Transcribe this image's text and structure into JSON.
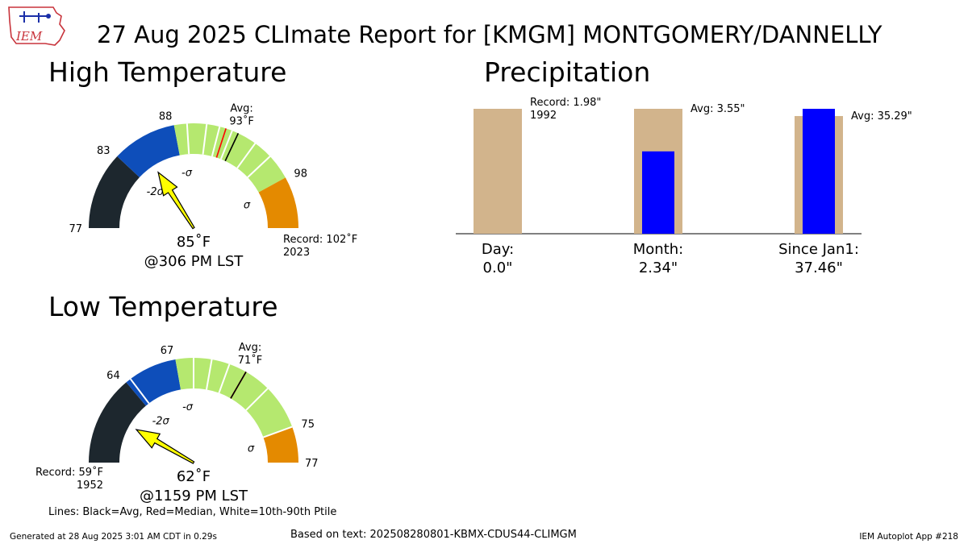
{
  "title": "27 Aug 2025 CLImate Report for [KMGM] MONTGOMERY/DANNELLY",
  "logo_text": "IEM",
  "legend_note": "Lines: Black=Avg, Red=Median, White=10th-90th Ptile",
  "footer": {
    "left": "Generated at 28 Aug 2025 3:01 AM CDT in 0.29s",
    "center": "Based on text: 202508280801-KBMX-CDUS44-CLIMGM",
    "right": "IEM Autoplot App #218"
  },
  "colors": {
    "below_min": "#1d272e",
    "minus_2sigma": "#0e4eba",
    "normal": "#b5e86f",
    "above_sigma": "#e48a00",
    "avg_line": "#000000",
    "median_line": "#ff0000",
    "pointer": "#ffff00",
    "precip_record": "#d2b48c",
    "precip_obs": "#0000ff"
  },
  "chart_data": [
    {
      "type": "gauge",
      "title": "High Temperature",
      "unit": "°F",
      "range": [
        77,
        102
      ],
      "tick_labels": [
        "77",
        "83",
        "88",
        "98"
      ],
      "thresholds": {
        "minus_2sigma": 83,
        "minus_sigma": 88,
        "sigma": 98
      },
      "sigma_labels": {
        "minus_2sigma": "-2σ",
        "minus_sigma": "-σ",
        "sigma": "σ"
      },
      "average": 93,
      "average_label": "Avg:",
      "average_value": "93˚F",
      "median": 92,
      "percentile_lines": [
        89,
        90.5,
        91.5,
        92.5,
        94.5,
        96
      ],
      "observed": 85,
      "observed_label": "85˚F",
      "time_label": "@306 PM LST",
      "record_label": "Record: 102˚F",
      "record_year": "2023"
    },
    {
      "type": "gauge",
      "title": "Low Temperature",
      "unit": "°F",
      "range": [
        59,
        77
      ],
      "tick_labels": [
        "64",
        "67",
        "75",
        "77"
      ],
      "thresholds": {
        "minus_2sigma": 64,
        "minus_sigma": 67,
        "sigma": 75
      },
      "sigma_labels": {
        "minus_2sigma": "-2σ",
        "minus_sigma": "-σ",
        "sigma": "σ"
      },
      "average": 71,
      "average_label": "Avg:",
      "average_value": "71˚F",
      "median": 71,
      "percentile_lines": [
        64.3,
        68,
        69,
        70,
        72.5,
        75
      ],
      "observed": 62,
      "observed_label": "62˚F",
      "time_label": "@1159 PM LST",
      "record_label": "Record: 59˚F",
      "record_year": "1952"
    },
    {
      "type": "bar",
      "title": "Precipitation",
      "categories": [
        "Day:",
        "Month:",
        "Since Jan1:"
      ],
      "observed_labels": [
        "0.0\"",
        "2.34\"",
        "37.46\""
      ],
      "observed": [
        0.0,
        2.34,
        37.46
      ],
      "reference": [
        1.98,
        3.55,
        35.29
      ],
      "reference_labels": [
        "Record: 1.98\"",
        "Avg: 3.55\"",
        "Avg: 35.29\""
      ],
      "reference_year": [
        "1992",
        "",
        ""
      ]
    }
  ]
}
